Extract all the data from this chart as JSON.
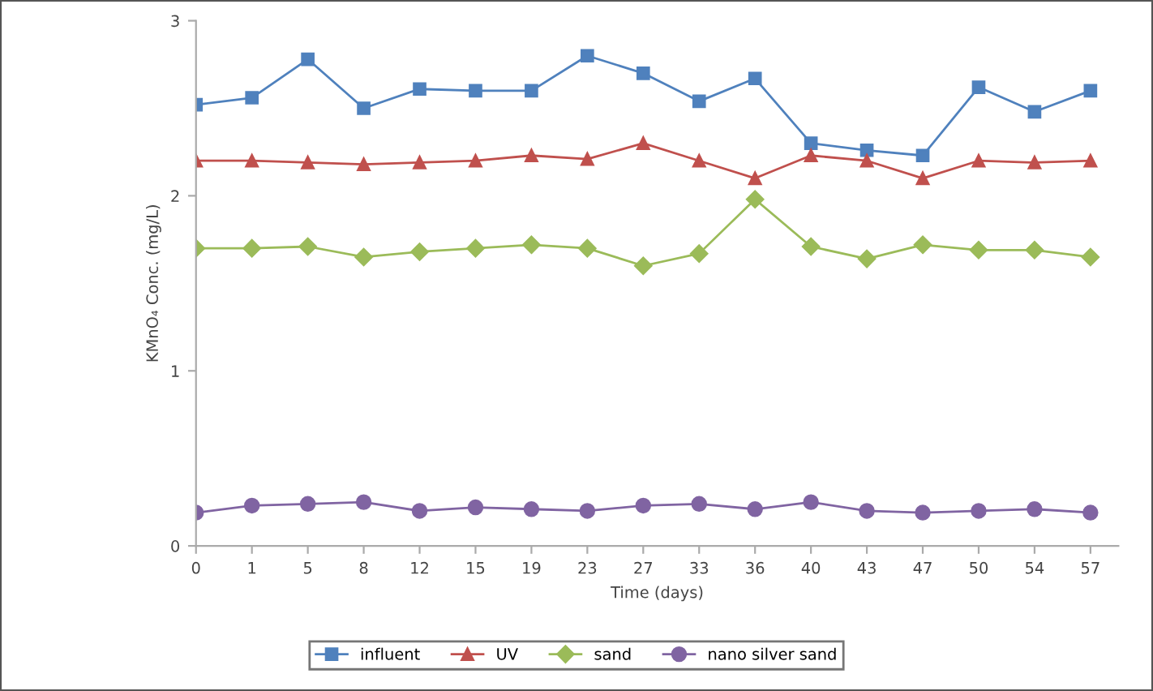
{
  "chart_data": {
    "type": "line",
    "xlabel": "Time (days)",
    "ylabel": "KMnO₄ Conc. (mg/L)",
    "categories": [
      "0",
      "1",
      "5",
      "8",
      "12",
      "15",
      "19",
      "23",
      "27",
      "33",
      "36",
      "40",
      "43",
      "47",
      "50",
      "54",
      "57"
    ],
    "ylim": [
      0,
      3
    ],
    "yticks": [
      0,
      1,
      2,
      3
    ],
    "grid": false,
    "legend": "bottom",
    "line_style": "solid",
    "series": [
      {
        "name": "influent",
        "color": "#4f81bd",
        "marker": "square",
        "values": [
          2.52,
          2.56,
          2.78,
          2.5,
          2.61,
          2.6,
          2.6,
          2.8,
          2.7,
          2.54,
          2.67,
          2.3,
          2.26,
          2.23,
          2.62,
          2.48,
          2.6
        ]
      },
      {
        "name": "UV",
        "color": "#c0504d",
        "marker": "triangle",
        "values": [
          2.2,
          2.2,
          2.19,
          2.18,
          2.19,
          2.2,
          2.23,
          2.21,
          2.3,
          2.2,
          2.1,
          2.23,
          2.2,
          2.1,
          2.2,
          2.19,
          2.2
        ]
      },
      {
        "name": "sand",
        "color": "#9bbb59",
        "marker": "diamond",
        "values": [
          1.7,
          1.7,
          1.71,
          1.65,
          1.68,
          1.7,
          1.72,
          1.7,
          1.6,
          1.67,
          1.98,
          1.71,
          1.64,
          1.72,
          1.69,
          1.69,
          1.65
        ]
      },
      {
        "name": "nano silver sand",
        "color": "#8064a2",
        "marker": "circle",
        "values": [
          0.19,
          0.23,
          0.24,
          0.25,
          0.2,
          0.22,
          0.21,
          0.2,
          0.23,
          0.24,
          0.21,
          0.25,
          0.2,
          0.19,
          0.2,
          0.21,
          0.19
        ]
      }
    ]
  }
}
